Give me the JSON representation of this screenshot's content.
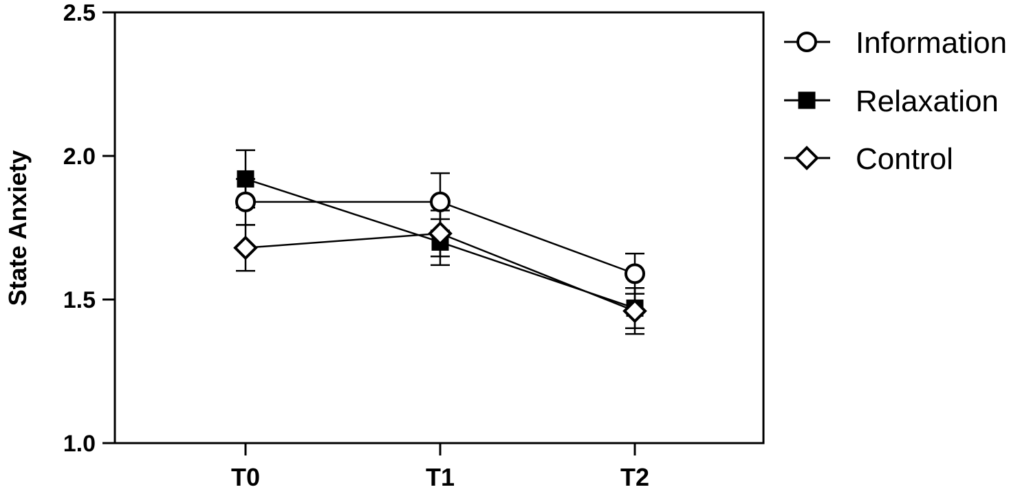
{
  "chart_data": {
    "type": "line",
    "title": "",
    "xlabel": "",
    "ylabel": "State Anxiety",
    "categories": [
      "T0",
      "T1",
      "T2"
    ],
    "ylim": [
      1.0,
      2.5
    ],
    "y_ticks": [
      "1.0",
      "1.5",
      "2.0",
      "2.5"
    ],
    "grid": false,
    "legend_position": "right",
    "series": [
      {
        "name": "Information",
        "marker": "circle-open",
        "values": [
          1.84,
          1.84,
          1.59
        ],
        "error": [
          0.08,
          0.1,
          0.07
        ]
      },
      {
        "name": "Relaxation",
        "marker": "square-filled",
        "values": [
          1.92,
          1.7,
          1.47
        ],
        "error": [
          0.1,
          0.08,
          0.07
        ]
      },
      {
        "name": "Control",
        "marker": "diamond-open",
        "values": [
          1.68,
          1.73,
          1.46
        ],
        "error": [
          0.08,
          0.08,
          0.08
        ]
      }
    ]
  }
}
